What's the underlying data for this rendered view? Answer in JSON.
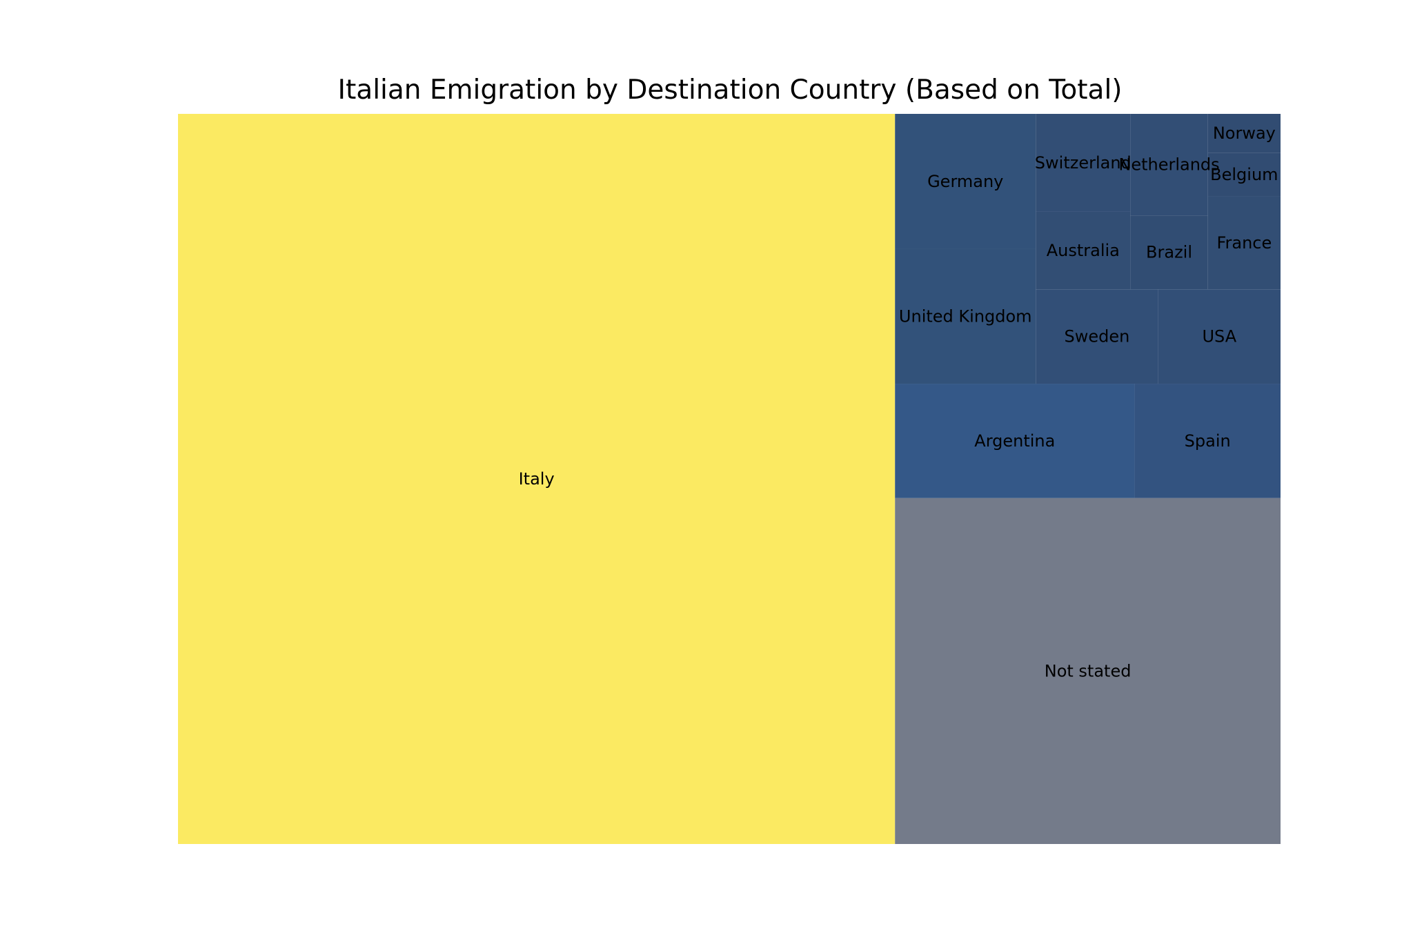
{
  "chart_data": {
    "type": "treemap",
    "title": "Italian Emigration by Destination Country (Based on Total)",
    "items": [
      {
        "label": "Italy",
        "value": 61.19,
        "color": "#fbea62"
      },
      {
        "label": "Not stated",
        "value": 15.59,
        "color": "#747b8a"
      },
      {
        "label": "Argentina",
        "value": 3.2,
        "color": "#345888"
      },
      {
        "label": "Spain",
        "value": 1.95,
        "color": "#335380"
      },
      {
        "label": "Germany",
        "value": 2.22,
        "color": "#32527a"
      },
      {
        "label": "United Kingdom",
        "value": 2.22,
        "color": "#32527a"
      },
      {
        "label": "Sweden",
        "value": 1.35,
        "color": "#324f77"
      },
      {
        "label": "USA",
        "value": 1.35,
        "color": "#324f77"
      },
      {
        "label": "Switzerland",
        "value": 1.08,
        "color": "#324e75"
      },
      {
        "label": "Australia",
        "value": 0.86,
        "color": "#324e74"
      },
      {
        "label": "Netherlands",
        "value": 0.92,
        "color": "#324e75"
      },
      {
        "label": "Brazil",
        "value": 0.67,
        "color": "#314d73"
      },
      {
        "label": "France",
        "value": 0.79,
        "color": "#324e74"
      },
      {
        "label": "Norway",
        "value": 0.33,
        "color": "#314c72"
      },
      {
        "label": "Belgium",
        "value": 0.37,
        "color": "#314c72"
      }
    ]
  }
}
